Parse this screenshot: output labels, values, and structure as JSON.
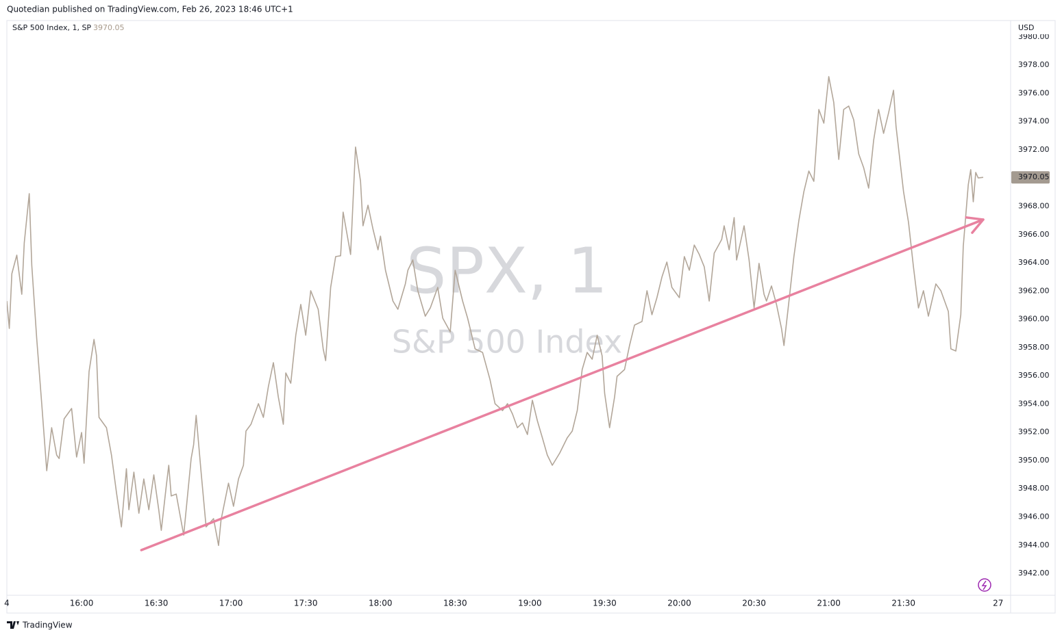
{
  "header": {
    "published": "Quotedian published on TradingView.com, Feb 26, 2023 18:46 UTC+1"
  },
  "legend": {
    "symbol": "S&P 500 Index, 1, SP"
  },
  "watermark": {
    "symbol": "SPX, 1",
    "name": "S&P 500 Index"
  },
  "footer": {
    "brand": "TradingView"
  },
  "chart_data": {
    "type": "line",
    "currency": "USD",
    "color": "#b2a699",
    "last_price": 3970.05,
    "x": [
      "15:30",
      "15:31",
      "15:32",
      "15:34",
      "15:36",
      "15:37",
      "15:39",
      "15:40",
      "15:42",
      "15:44",
      "15:46",
      "15:48",
      "15:50",
      "15:51",
      "15:53",
      "15:56",
      "15:58",
      "16:00",
      "16:01",
      "16:03",
      "16:05",
      "16:06",
      "16:07",
      "16:10",
      "16:12",
      "16:14",
      "16:16",
      "16:18",
      "16:19",
      "16:21",
      "16:23",
      "16:25",
      "16:27",
      "16:29",
      "16:31",
      "16:32",
      "16:34",
      "16:35",
      "16:36",
      "16:38",
      "16:41",
      "16:44",
      "16:45",
      "16:46",
      "16:48",
      "16:50",
      "16:53",
      "16:55",
      "16:56",
      "16:59",
      "17:01",
      "17:03",
      "17:05",
      "17:06",
      "17:08",
      "17:11",
      "17:13",
      "17:15",
      "17:17",
      "17:19",
      "17:21",
      "17:22",
      "17:24",
      "17:26",
      "17:28",
      "17:30",
      "17:32",
      "17:35",
      "17:37",
      "17:38",
      "17:40",
      "17:42",
      "17:44",
      "17:45",
      "17:48",
      "17:50",
      "17:52",
      "17:53",
      "17:55",
      "17:57",
      "17:59",
      "18:00",
      "18:02",
      "18:05",
      "18:07",
      "18:10",
      "18:11",
      "18:13",
      "18:15",
      "18:18",
      "18:20",
      "18:23",
      "18:25",
      "18:28",
      "18:30",
      "18:33",
      "18:35",
      "18:38",
      "18:41",
      "18:44",
      "18:46",
      "18:49",
      "18:51",
      "18:53",
      "18:55",
      "18:57",
      "18:59",
      "19:01",
      "19:03",
      "19:05",
      "19:07",
      "19:09",
      "19:12",
      "19:15",
      "19:17",
      "19:19",
      "19:21",
      "19:23",
      "19:25",
      "19:27",
      "19:29",
      "19:30",
      "19:32",
      "19:34",
      "19:35",
      "19:38",
      "19:40",
      "19:42",
      "19:45",
      "19:47",
      "19:49",
      "19:51",
      "19:53",
      "19:55",
      "19:57",
      "20:00",
      "20:02",
      "20:04",
      "20:06",
      "20:08",
      "20:10",
      "20:12",
      "20:14",
      "20:17",
      "20:18",
      "20:20",
      "20:22",
      "20:23",
      "20:26",
      "20:28",
      "20:30",
      "20:32",
      "20:34",
      "20:35",
      "20:37",
      "20:39",
      "20:41",
      "20:42",
      "20:44",
      "20:46",
      "20:48",
      "20:50",
      "20:52",
      "20:54",
      "20:56",
      "20:58",
      "21:00",
      "21:02",
      "21:04",
      "21:06",
      "21:08",
      "21:10",
      "21:12",
      "21:14",
      "21:16",
      "21:18",
      "21:20",
      "21:22",
      "21:24",
      "21:26",
      "21:27",
      "21:30",
      "21:32",
      "21:34",
      "21:36",
      "21:38",
      "21:40",
      "21:43",
      "21:45",
      "21:48",
      "21:49",
      "21:51",
      "21:53",
      "21:54",
      "21:56",
      "21:57",
      "21:58",
      "21:59",
      "22:00",
      "22:02"
    ],
    "values": [
      3961.29,
      3959.35,
      3963.23,
      3964.54,
      3961.77,
      3965.41,
      3968.9,
      3963.81,
      3958.62,
      3954.02,
      3949.27,
      3952.32,
      3950.38,
      3950.14,
      3952.95,
      3953.68,
      3950.24,
      3951.98,
      3949.8,
      3956.3,
      3958.57,
      3957.41,
      3953.05,
      3952.32,
      3950.38,
      3947.72,
      3945.29,
      3949.41,
      3946.51,
      3949.17,
      3946.26,
      3948.69,
      3946.51,
      3948.98,
      3946.51,
      3945.05,
      3948.2,
      3949.66,
      3947.48,
      3947.62,
      3944.71,
      3950.14,
      3951.11,
      3953.19,
      3949.17,
      3945.29,
      3945.88,
      3943.98,
      3945.78,
      3948.39,
      3946.75,
      3948.69,
      3949.66,
      3952.08,
      3952.56,
      3954.02,
      3953.05,
      3955.23,
      3956.93,
      3954.5,
      3952.56,
      3956.2,
      3955.47,
      3958.87,
      3961.05,
      3958.87,
      3962.02,
      3960.71,
      3957.9,
      3957.07,
      3962.26,
      3964.44,
      3964.5,
      3967.59,
      3964.59,
      3972.2,
      3969.77,
      3966.62,
      3968.08,
      3966.38,
      3964.92,
      3965.89,
      3963.47,
      3961.29,
      3960.71,
      3962.5,
      3963.47,
      3964.2,
      3962.02,
      3960.22,
      3960.8,
      3962.26,
      3960.08,
      3959.11,
      3963.47,
      3961.29,
      3960.08,
      3957.9,
      3957.65,
      3955.72,
      3954.02,
      3953.53,
      3954.02,
      3953.29,
      3952.32,
      3952.66,
      3951.84,
      3954.26,
      3952.81,
      3951.6,
      3950.38,
      3949.66,
      3950.53,
      3951.6,
      3952.08,
      3953.53,
      3956.44,
      3957.65,
      3957.17,
      3958.87,
      3957.41,
      3954.75,
      3952.32,
      3954.5,
      3955.96,
      3956.44,
      3958.14,
      3959.59,
      3959.84,
      3962.02,
      3960.32,
      3961.53,
      3962.99,
      3964.05,
      3962.26,
      3961.53,
      3964.44,
      3963.47,
      3965.26,
      3964.59,
      3963.71,
      3961.29,
      3964.68,
      3965.65,
      3966.62,
      3964.92,
      3967.2,
      3964.2,
      3966.62,
      3964.2,
      3960.8,
      3963.96,
      3961.77,
      3961.29,
      3962.36,
      3961.05,
      3959.35,
      3958.14,
      3961.29,
      3964.44,
      3967.01,
      3969.05,
      3970.5,
      3969.77,
      3974.86,
      3973.89,
      3977.19,
      3975.35,
      3971.32,
      3974.86,
      3975.1,
      3974.13,
      3971.71,
      3970.74,
      3969.29,
      3972.68,
      3974.86,
      3973.17,
      3974.62,
      3976.22,
      3973.65,
      3969.05,
      3966.86,
      3963.71,
      3960.8,
      3962.02,
      3960.22,
      3962.5,
      3962.02,
      3960.56,
      3957.9,
      3957.75,
      3960.32,
      3965.17,
      3969.53,
      3970.6,
      3968.32,
      3970.4,
      3970.01,
      3970.05
    ],
    "trendline": {
      "x": [
        "16:24",
        "22:02"
      ],
      "values": [
        3943.65,
        3967.06
      ],
      "color": "#e8819f"
    },
    "xlim": [
      "15:30",
      "22:13"
    ],
    "xticks": [
      {
        "value": "15:30",
        "label": "4"
      },
      "16:00",
      "16:30",
      "17:00",
      "17:30",
      "18:00",
      "18:30",
      "19:00",
      "19:30",
      "20:00",
      "20:30",
      "21:00",
      "21:30",
      {
        "value": "22:08",
        "label": "27"
      }
    ],
    "ylim": [
      3940.45,
      3981.16
    ],
    "yticks": [
      {
        "value": 3942,
        "label": "3942.00"
      },
      {
        "value": 3944,
        "label": "3944.00"
      },
      {
        "value": 3946,
        "label": "3946.00"
      },
      {
        "value": 3948,
        "label": "3948.00"
      },
      {
        "value": 3950,
        "label": "3950.00"
      },
      {
        "value": 3952,
        "label": "3952.00"
      },
      {
        "value": 3954,
        "label": "3954.00"
      },
      {
        "value": 3956,
        "label": "3956.00"
      },
      {
        "value": 3958,
        "label": "3958.00"
      },
      {
        "value": 3960,
        "label": "3960.00"
      },
      {
        "value": 3962,
        "label": "3962.00"
      },
      {
        "value": 3964,
        "label": "3964.00"
      },
      {
        "value": 3966,
        "label": "3966.00"
      },
      {
        "value": 3968,
        "label": "3968.00"
      },
      {
        "value": 3970,
        "label": "3970.00"
      },
      {
        "value": 3972,
        "label": "3972.00"
      },
      {
        "value": 3974,
        "label": "3974.00"
      },
      {
        "value": 3976,
        "label": "3976.00"
      },
      {
        "value": 3978,
        "label": "3978.00"
      },
      {
        "value": 3980,
        "label": "3980.00"
      }
    ]
  }
}
